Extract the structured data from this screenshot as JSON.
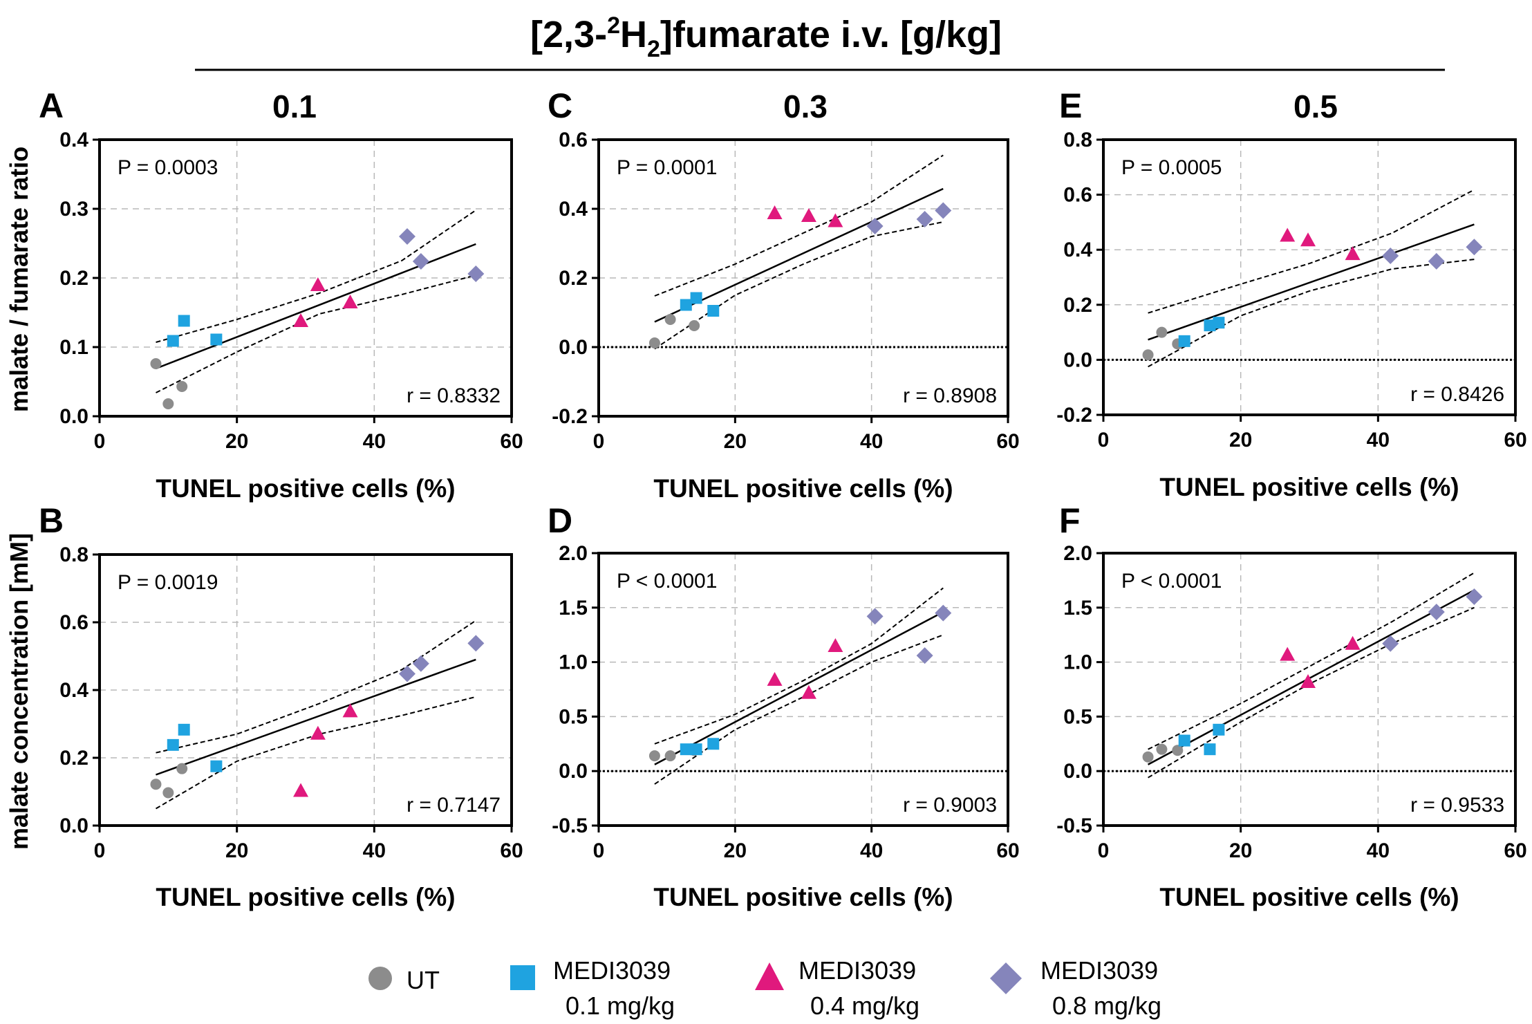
{
  "header": {
    "main": "[2,3-",
    "sup": "2",
    "mid": "H",
    "sub": "2",
    "end": "]fumarate i.v. [g/kg]"
  },
  "column_titles": [
    "0.1",
    "0.3",
    "0.5"
  ],
  "row_labels": {
    "top": "malate / fumarate ratio",
    "bottom": "malate concentration [mM]"
  },
  "legend": [
    {
      "label1": "UT",
      "label2": "",
      "marker": "circle",
      "color": "#8c8c8c"
    },
    {
      "label1": "MEDI3039",
      "label2": "0.1 mg/kg",
      "marker": "square",
      "color": "#1fa3e0"
    },
    {
      "label1": "MEDI3039",
      "label2": "0.4 mg/kg",
      "marker": "triangle",
      "color": "#e0197d"
    },
    {
      "label1": "MEDI3039",
      "label2": "0.8 mg/kg",
      "marker": "diamond",
      "color": "#8585bb"
    }
  ],
  "colors": {
    "UT": "#8c8c8c",
    "M01": "#1fa3e0",
    "M04": "#e0197d",
    "M08": "#8585bb"
  },
  "chart_data": [
    {
      "panel": "A",
      "type": "scatter",
      "xlabel": "TUNEL positive cells (%)",
      "xlim": [
        0,
        60
      ],
      "ylim": [
        0,
        0.4
      ],
      "xticks": [
        "0",
        "20",
        "40",
        "60"
      ],
      "yticks": [
        "0.0",
        "0.1",
        "0.2",
        "0.3",
        "0.4"
      ],
      "pval": "P = 0.0003",
      "r": "r = 0.8332",
      "series": [
        {
          "group": "UT",
          "points": [
            [
              8.2,
              0.076
            ],
            [
              10,
              0.018
            ],
            [
              12,
              0.043
            ]
          ]
        },
        {
          "group": "M01",
          "points": [
            [
              10.7,
              0.109
            ],
            [
              12.3,
              0.138
            ],
            [
              17,
              0.111
            ]
          ]
        },
        {
          "group": "M04",
          "points": [
            [
              29.3,
              0.138
            ],
            [
              31.8,
              0.19
            ],
            [
              36.5,
              0.165
            ]
          ]
        },
        {
          "group": "M08",
          "points": [
            [
              44.8,
              0.26
            ],
            [
              46.8,
              0.224
            ],
            [
              54.8,
              0.206
            ]
          ]
        }
      ],
      "fit": [
        [
          8.2,
          0.069
        ],
        [
          54.8,
          0.249
        ]
      ],
      "ci_upper": [
        [
          8.2,
          0.107
        ],
        [
          20,
          0.14
        ],
        [
          32,
          0.178
        ],
        [
          44,
          0.225
        ],
        [
          54.8,
          0.298
        ]
      ],
      "ci_lower": [
        [
          8.2,
          0.034
        ],
        [
          20,
          0.093
        ],
        [
          32,
          0.148
        ],
        [
          44,
          0.176
        ],
        [
          54.8,
          0.204
        ]
      ]
    },
    {
      "panel": "B",
      "type": "scatter",
      "xlabel": "TUNEL positive cells (%)",
      "xlim": [
        0,
        60
      ],
      "ylim": [
        0,
        0.8
      ],
      "xticks": [
        "0",
        "20",
        "40",
        "60"
      ],
      "yticks": [
        "0.0",
        "0.2",
        "0.4",
        "0.6",
        "0.8"
      ],
      "pval": "P = 0.0019",
      "r": "r = 0.7147",
      "series": [
        {
          "group": "UT",
          "points": [
            [
              8.2,
              0.122
            ],
            [
              10,
              0.097
            ],
            [
              12,
              0.168
            ]
          ]
        },
        {
          "group": "M01",
          "points": [
            [
              10.7,
              0.238
            ],
            [
              12.3,
              0.283
            ],
            [
              17,
              0.175
            ]
          ]
        },
        {
          "group": "M04",
          "points": [
            [
              29.3,
              0.103
            ],
            [
              31.8,
              0.272
            ],
            [
              36.5,
              0.338
            ]
          ]
        },
        {
          "group": "M08",
          "points": [
            [
              44.8,
              0.448
            ],
            [
              46.8,
              0.478
            ],
            [
              54.8,
              0.538
            ]
          ]
        }
      ],
      "fit": [
        [
          8.2,
          0.15
        ],
        [
          54.8,
          0.49
        ]
      ],
      "ci_upper": [
        [
          8.2,
          0.215
        ],
        [
          20,
          0.27
        ],
        [
          32,
          0.36
        ],
        [
          44,
          0.46
        ],
        [
          54.8,
          0.605
        ]
      ],
      "ci_lower": [
        [
          8.2,
          0.05
        ],
        [
          20,
          0.19
        ],
        [
          32,
          0.27
        ],
        [
          44,
          0.325
        ],
        [
          54.8,
          0.38
        ]
      ]
    },
    {
      "panel": "C",
      "type": "scatter",
      "xlabel": "TUNEL positive cells (%)",
      "xlim": [
        0,
        60
      ],
      "ylim": [
        -0.2,
        0.6
      ],
      "xticks": [
        "0",
        "20",
        "40",
        "60"
      ],
      "yticks": [
        "-0.2",
        "0.0",
        "0.2",
        "0.4",
        "0.6"
      ],
      "pval": "P = 0.0001",
      "r": "r = 0.8908",
      "series": [
        {
          "group": "UT",
          "points": [
            [
              8.2,
              0.012
            ],
            [
              10.5,
              0.08
            ],
            [
              14,
              0.062
            ]
          ]
        },
        {
          "group": "M01",
          "points": [
            [
              12.8,
              0.122
            ],
            [
              14.3,
              0.142
            ],
            [
              16.8,
              0.105
            ]
          ]
        },
        {
          "group": "M04",
          "points": [
            [
              25.8,
              0.388
            ],
            [
              30.8,
              0.38
            ],
            [
              34.7,
              0.365
            ]
          ]
        },
        {
          "group": "M08",
          "points": [
            [
              40.5,
              0.35
            ],
            [
              47.8,
              0.37
            ],
            [
              50.5,
              0.395
            ]
          ]
        }
      ],
      "fit": [
        [
          8.2,
          0.073
        ],
        [
          50.5,
          0.458
        ]
      ],
      "ci_upper": [
        [
          8.2,
          0.148
        ],
        [
          20,
          0.24
        ],
        [
          30,
          0.33
        ],
        [
          40,
          0.42
        ],
        [
          50.5,
          0.555
        ]
      ],
      "ci_lower": [
        [
          8.2,
          -0.005
        ],
        [
          20,
          0.15
        ],
        [
          30,
          0.24
        ],
        [
          40,
          0.32
        ],
        [
          50.5,
          0.362
        ]
      ]
    },
    {
      "panel": "D",
      "type": "scatter",
      "xlabel": "TUNEL positive cells (%)",
      "xlim": [
        0,
        60
      ],
      "ylim": [
        -0.5,
        2.0
      ],
      "xticks": [
        "0",
        "20",
        "40",
        "60"
      ],
      "yticks": [
        "-0.5",
        "0.0",
        "0.5",
        "1.0",
        "1.5",
        "2.0"
      ],
      "pval": "P < 0.0001",
      "r": "r = 0.9003",
      "series": [
        {
          "group": "UT",
          "points": [
            [
              8.2,
              0.14
            ],
            [
              10.5,
              0.14
            ],
            [
              14,
              0.19
            ]
          ]
        },
        {
          "group": "M01",
          "points": [
            [
              12.8,
              0.2
            ],
            [
              14.3,
              0.2
            ],
            [
              16.8,
              0.25
            ]
          ]
        },
        {
          "group": "M04",
          "points": [
            [
              25.8,
              0.84
            ],
            [
              30.8,
              0.72
            ],
            [
              34.7,
              1.15
            ]
          ]
        },
        {
          "group": "M08",
          "points": [
            [
              40.5,
              1.42
            ],
            [
              47.8,
              1.06
            ],
            [
              50.5,
              1.45
            ]
          ]
        }
      ],
      "fit": [
        [
          8.2,
          0.06
        ],
        [
          50.5,
          1.46
        ]
      ],
      "ci_upper": [
        [
          8.2,
          0.25
        ],
        [
          20,
          0.52
        ],
        [
          30,
          0.83
        ],
        [
          40,
          1.17
        ],
        [
          50.5,
          1.68
        ]
      ],
      "ci_lower": [
        [
          8.2,
          -0.12
        ],
        [
          20,
          0.38
        ],
        [
          30,
          0.68
        ],
        [
          40,
          1.0
        ],
        [
          50.5,
          1.25
        ]
      ]
    },
    {
      "panel": "E",
      "type": "scatter",
      "xlabel": "TUNEL positive cells (%)",
      "xlim": [
        0,
        60
      ],
      "ylim": [
        -0.2,
        0.8
      ],
      "xticks": [
        "0",
        "20",
        "40",
        "60"
      ],
      "yticks": [
        "-0.2",
        "0.0",
        "0.2",
        "0.4",
        "0.6",
        "0.8"
      ],
      "pval": "P = 0.0005",
      "r": "r = 0.8426",
      "series": [
        {
          "group": "UT",
          "points": [
            [
              6.5,
              0.018
            ],
            [
              8.5,
              0.1
            ],
            [
              10.8,
              0.058
            ]
          ]
        },
        {
          "group": "M01",
          "points": [
            [
              11.8,
              0.068
            ],
            [
              15.5,
              0.125
            ],
            [
              16.8,
              0.135
            ]
          ]
        },
        {
          "group": "M04",
          "points": [
            [
              26.8,
              0.452
            ],
            [
              29.8,
              0.435
            ],
            [
              36.3,
              0.385
            ]
          ]
        },
        {
          "group": "M08",
          "points": [
            [
              41.8,
              0.378
            ],
            [
              48.5,
              0.358
            ],
            [
              54,
              0.41
            ]
          ]
        }
      ],
      "fit": [
        [
          6.5,
          0.073
        ],
        [
          54,
          0.492
        ]
      ],
      "ci_upper": [
        [
          6.5,
          0.17
        ],
        [
          20,
          0.275
        ],
        [
          30,
          0.35
        ],
        [
          42,
          0.46
        ],
        [
          54,
          0.618
        ]
      ],
      "ci_lower": [
        [
          6.5,
          -0.025
        ],
        [
          20,
          0.16
        ],
        [
          30,
          0.25
        ],
        [
          42,
          0.33
        ],
        [
          54,
          0.365
        ]
      ]
    },
    {
      "panel": "F",
      "type": "scatter",
      "xlabel": "TUNEL positive cells (%)",
      "xlim": [
        0,
        60
      ],
      "ylim": [
        -0.5,
        2.0
      ],
      "xticks": [
        "0",
        "20",
        "40",
        "60"
      ],
      "yticks": [
        "-0.5",
        "0.0",
        "0.5",
        "1.0",
        "1.5",
        "2.0"
      ],
      "pval": "P < 0.0001",
      "r": "r = 0.9533",
      "series": [
        {
          "group": "UT",
          "points": [
            [
              6.5,
              0.13
            ],
            [
              8.5,
              0.2
            ],
            [
              10.8,
              0.19
            ]
          ]
        },
        {
          "group": "M01",
          "points": [
            [
              11.8,
              0.28
            ],
            [
              15.5,
              0.2
            ],
            [
              16.8,
              0.38
            ]
          ]
        },
        {
          "group": "M04",
          "points": [
            [
              26.8,
              1.07
            ],
            [
              29.8,
              0.82
            ],
            [
              36.3,
              1.17
            ]
          ]
        },
        {
          "group": "M08",
          "points": [
            [
              41.8,
              1.17
            ],
            [
              48.5,
              1.46
            ],
            [
              54,
              1.6
            ]
          ]
        }
      ],
      "fit": [
        [
          6.5,
          0.06
        ],
        [
          54,
          1.66
        ]
      ],
      "ci_upper": [
        [
          6.5,
          0.2
        ],
        [
          20,
          0.62
        ],
        [
          30,
          0.96
        ],
        [
          42,
          1.37
        ],
        [
          54,
          1.82
        ]
      ],
      "ci_lower": [
        [
          6.5,
          -0.06
        ],
        [
          20,
          0.45
        ],
        [
          30,
          0.8
        ],
        [
          42,
          1.17
        ],
        [
          54,
          1.5
        ]
      ]
    }
  ]
}
